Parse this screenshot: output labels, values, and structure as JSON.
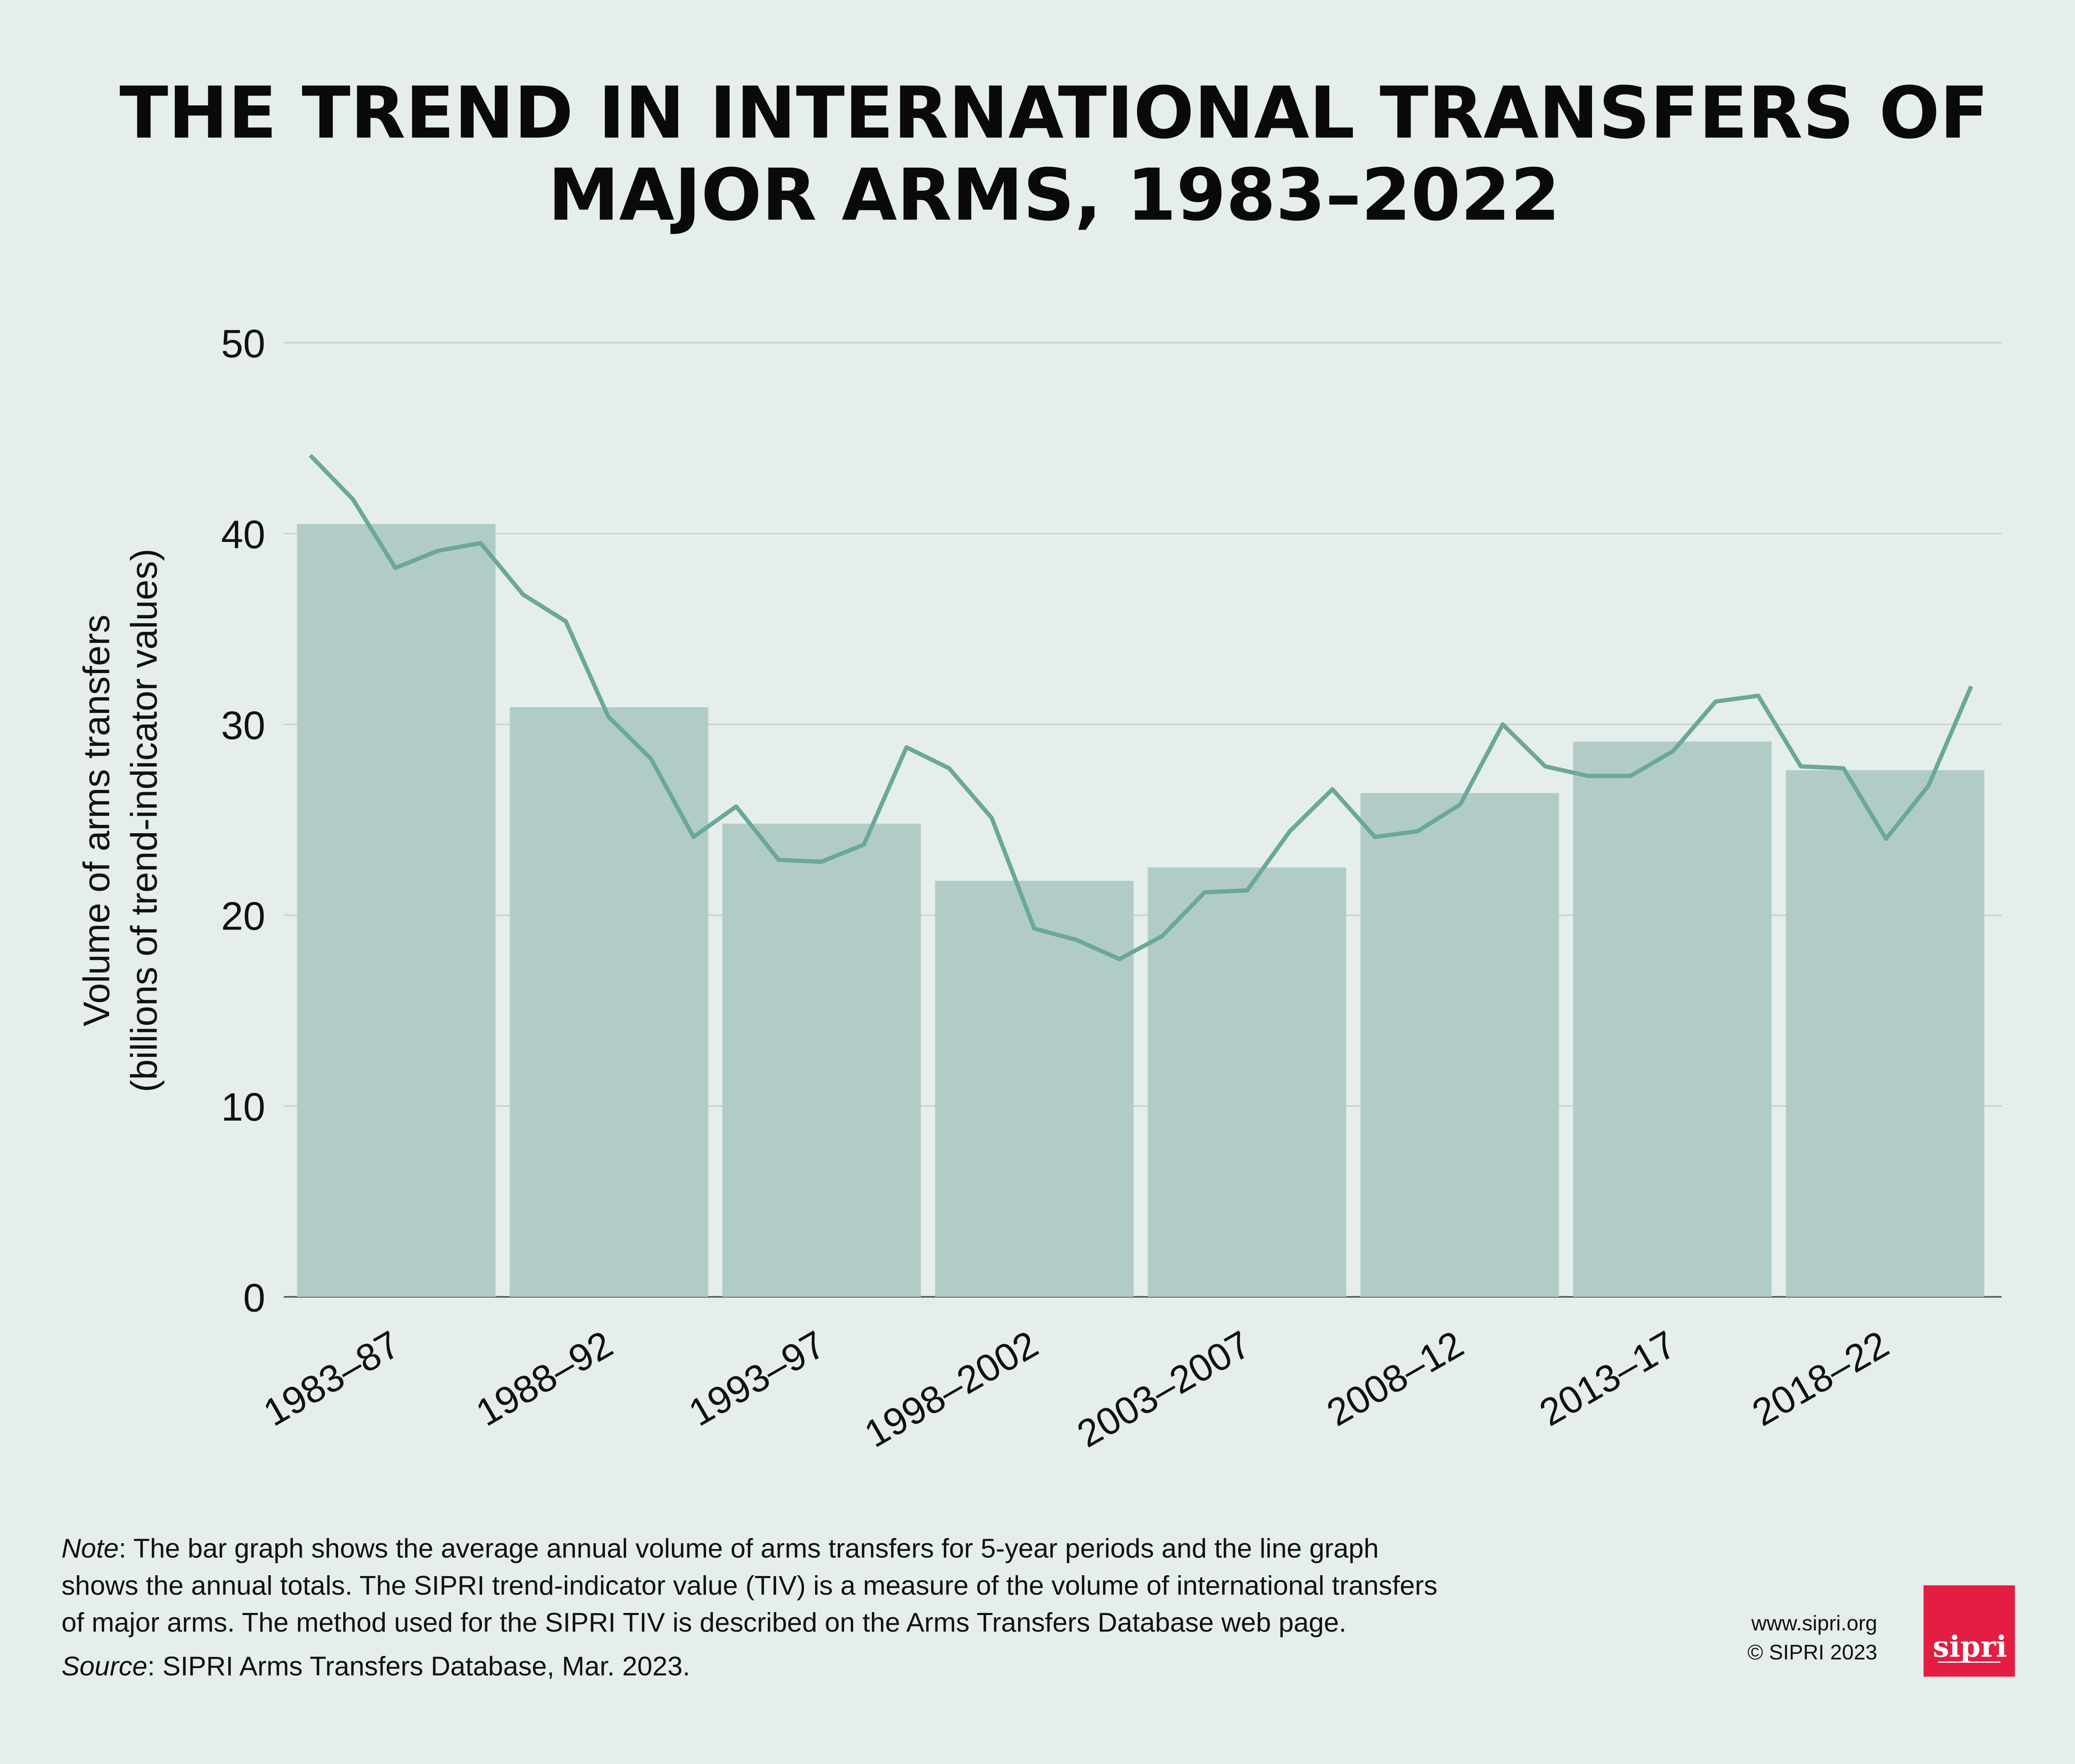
{
  "title_lines": [
    "THE TREND IN INTERNATIONAL TRANSFERS OF",
    "MAJOR ARMS, 1983–2022"
  ],
  "chart_data": {
    "type": "bar+line",
    "title": "THE TREND IN INTERNATIONAL TRANSFERS OF MAJOR ARMS, 1983–2022",
    "ylabel_lines": [
      "Volume of arms transfers",
      "(billions of trend-indicator values)"
    ],
    "ylim": [
      0,
      50
    ],
    "yticks": [
      0,
      10,
      20,
      30,
      40,
      50
    ],
    "grid": true,
    "categories": [
      "1983–87",
      "1988–92",
      "1993–97",
      "1998–2002",
      "2003–2007",
      "2008–12",
      "2013–17",
      "2018–22"
    ],
    "bar_values": [
      40.5,
      30.9,
      24.8,
      21.8,
      22.5,
      26.4,
      29.1,
      27.6
    ],
    "line_years": [
      1983,
      1984,
      1985,
      1986,
      1987,
      1988,
      1989,
      1990,
      1991,
      1992,
      1993,
      1994,
      1995,
      1996,
      1997,
      1998,
      1999,
      2000,
      2001,
      2002,
      2003,
      2004,
      2005,
      2006,
      2007,
      2008,
      2009,
      2010,
      2011,
      2012,
      2013,
      2014,
      2015,
      2016,
      2017,
      2018,
      2019,
      2020,
      2021,
      2022
    ],
    "line_values": [
      44.1,
      41.8,
      38.2,
      39.1,
      39.5,
      36.8,
      35.4,
      30.4,
      28.2,
      24.1,
      25.7,
      22.9,
      22.8,
      23.7,
      28.8,
      27.7,
      25.1,
      19.3,
      18.7,
      17.7,
      18.9,
      21.2,
      21.3,
      24.4,
      26.6,
      24.1,
      24.4,
      25.8,
      30.0,
      27.8,
      27.3,
      27.3,
      28.6,
      31.2,
      31.5,
      27.8,
      27.7,
      24.0,
      26.8,
      32.0
    ],
    "colors": {
      "bar": "#b1ccc6",
      "line": "#6aa89a",
      "background": "#e5eeea",
      "grid": "#c4d0cc"
    }
  },
  "note": {
    "label": "Note",
    "lines": [
      ": The bar graph shows the average annual volume of arms transfers for 5-year periods and the line graph",
      "shows the annual totals. The SIPRI trend-indicator value (TIV) is a measure of the volume of international transfers",
      "of major arms. The method used for the SIPRI TIV is described on the Arms Transfers Database web page."
    ]
  },
  "source": {
    "label": "Source",
    "text": ": SIPRI Arms Transfers Database, Mar. 2023."
  },
  "footer": {
    "url": "www.sipri.org",
    "copyright": "© SIPRI 2023",
    "logo_text": "sipri",
    "logo_color": "#e31e42"
  }
}
